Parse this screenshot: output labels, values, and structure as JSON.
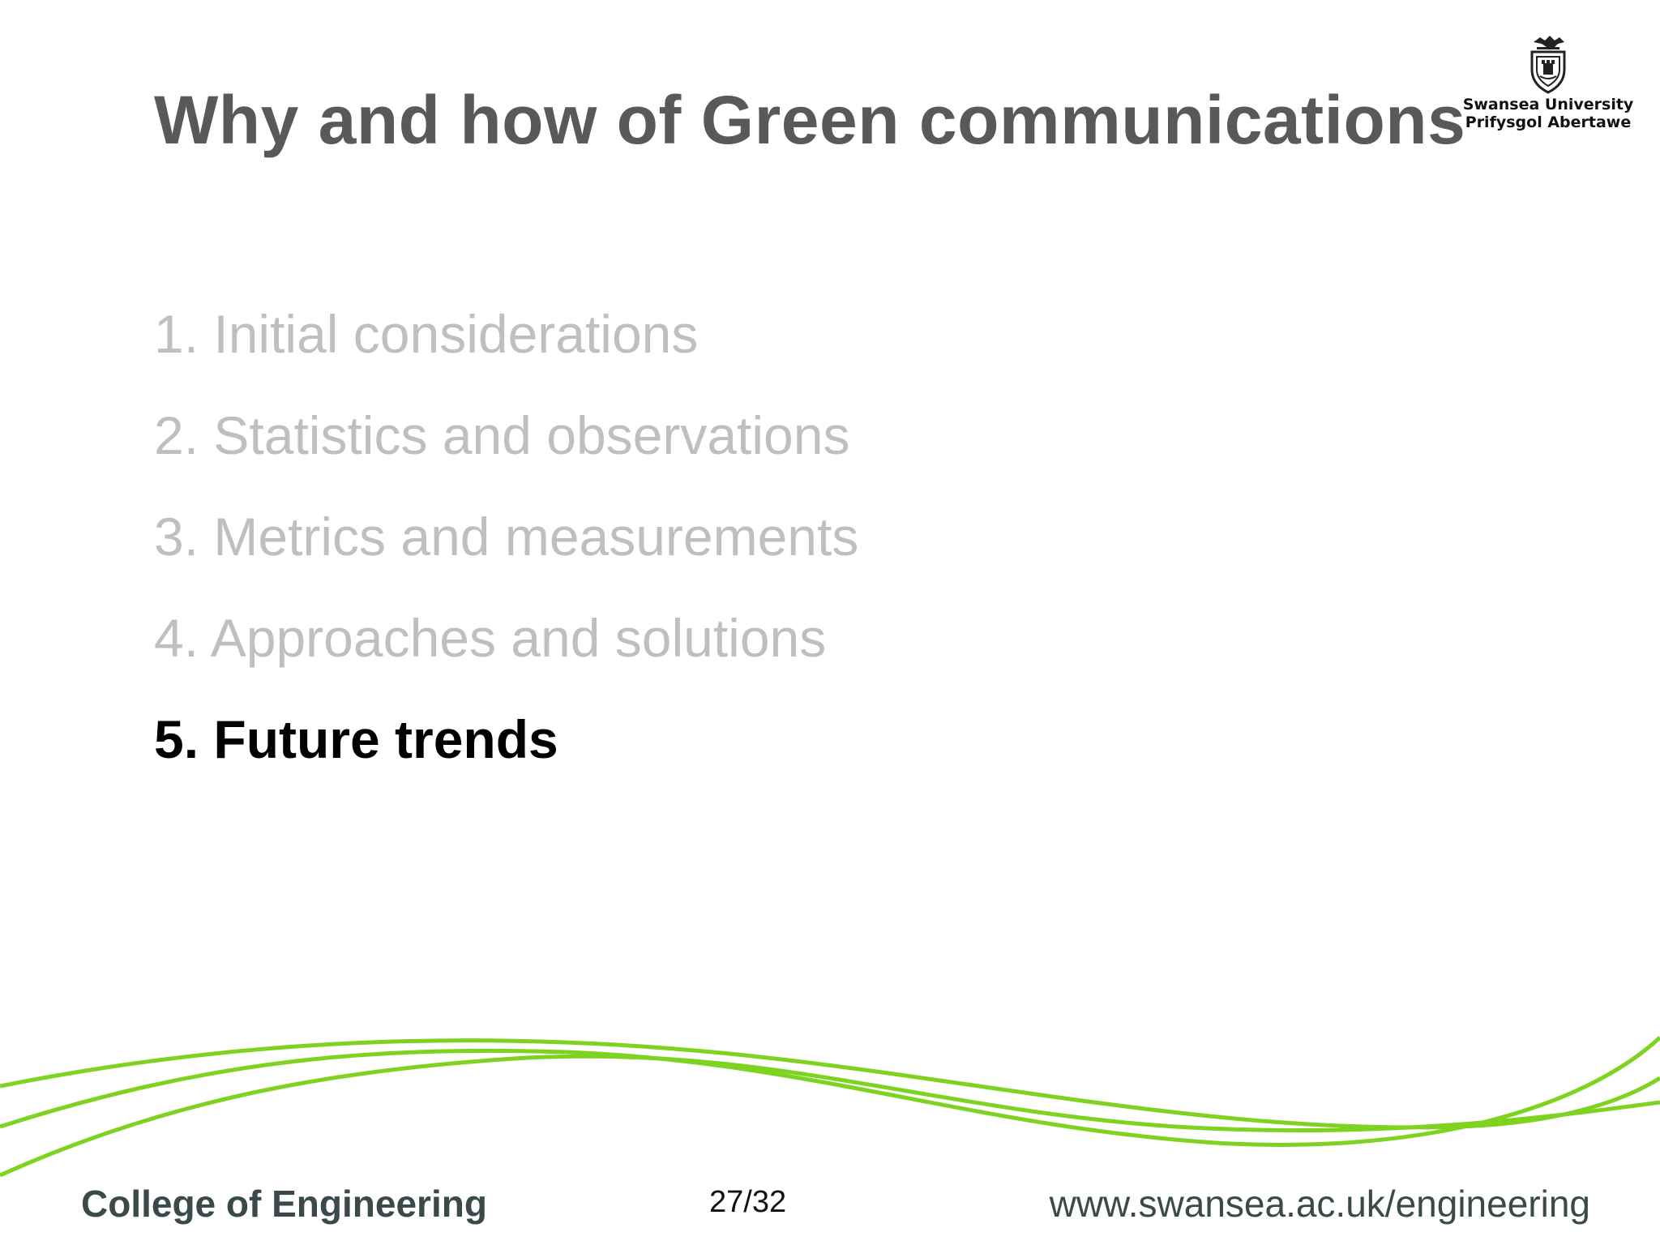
{
  "slide": {
    "title": "Why and how of Green communications",
    "logo": {
      "icon": "swansea-crest-icon",
      "line1": "Swansea University",
      "line2": "Prifysgol Abertawe"
    },
    "agenda": [
      {
        "label": "1. Initial considerations",
        "active": false
      },
      {
        "label": "2. Statistics and observations",
        "active": false
      },
      {
        "label": "3. Metrics and measurements",
        "active": false
      },
      {
        "label": "4. Approaches and solutions",
        "active": false
      },
      {
        "label": "5. Future trends",
        "active": true
      }
    ],
    "footer": {
      "college": "College of Engineering",
      "page": "27/32",
      "url": "www.swansea.ac.uk/engineering"
    },
    "colors": {
      "title": "#595959",
      "inactive": "#bfbfbf",
      "active": "#000000",
      "wave": "#7ed321"
    }
  }
}
